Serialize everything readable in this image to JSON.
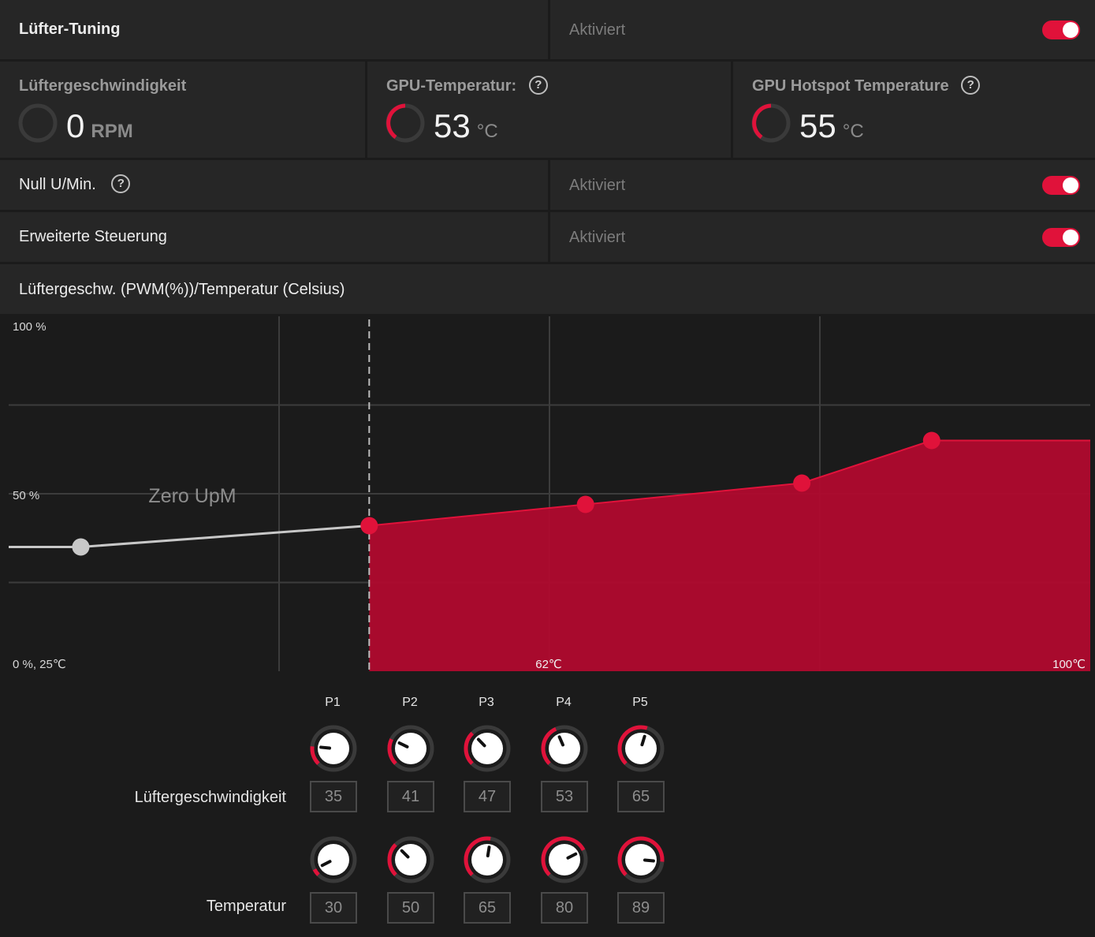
{
  "header": {
    "title": "Lüfter-Tuning",
    "status": "Aktiviert",
    "enabled": true
  },
  "stats": [
    {
      "title": "Lüftergeschwindigkeit",
      "value": "0",
      "unit": "RPM"
    },
    {
      "title": "GPU-Temperatur:",
      "value": "53",
      "unit": "°C"
    },
    {
      "title": "GPU Hotspot Temperature",
      "value": "55",
      "unit": "°C"
    }
  ],
  "settings": [
    {
      "label": "Null U/Min.",
      "status": "Aktiviert",
      "enabled": true
    },
    {
      "label": "Erweiterte Steuerung",
      "status": "Aktiviert",
      "enabled": true
    }
  ],
  "chart_section": {
    "title": "Lüftergeschw. (PWM(%))/Temperatur (Celsius)"
  },
  "chart_data": {
    "type": "area",
    "ylim": [
      0,
      100
    ],
    "xlim": [
      25,
      100
    ],
    "tick_labels": {
      "y_top": "100 %",
      "y_mid": "50 %",
      "origin": "0 %, 25℃",
      "x_mid": "62℃",
      "x_end": "100℃"
    },
    "annotation": "Zero UpM",
    "zero_rpm_threshold": 50,
    "inactive_points": [
      {
        "x": 30,
        "y": 35
      }
    ],
    "series": [
      {
        "x": [
          50,
          65,
          80,
          89
        ],
        "y": [
          41,
          47,
          53,
          65
        ]
      }
    ],
    "fill_to": 100,
    "accent_color": "#e0123a",
    "fill_color": "#b00a2e",
    "inactive_color": "#c8c8c8",
    "grid": true
  },
  "points": {
    "labels": [
      "P1",
      "P2",
      "P3",
      "P4",
      "P5"
    ],
    "speed_label": "Lüftergeschwindigkeit",
    "temp_label": "Temperatur",
    "speed": [
      "35",
      "41",
      "47",
      "53",
      "65"
    ],
    "temp": [
      "30",
      "50",
      "65",
      "80",
      "89"
    ]
  },
  "icons": {
    "help": "?",
    "help_icon": "question-circle-icon",
    "knob_icon": "dial-knob-icon",
    "ring_icon": "gauge-ring-icon"
  }
}
